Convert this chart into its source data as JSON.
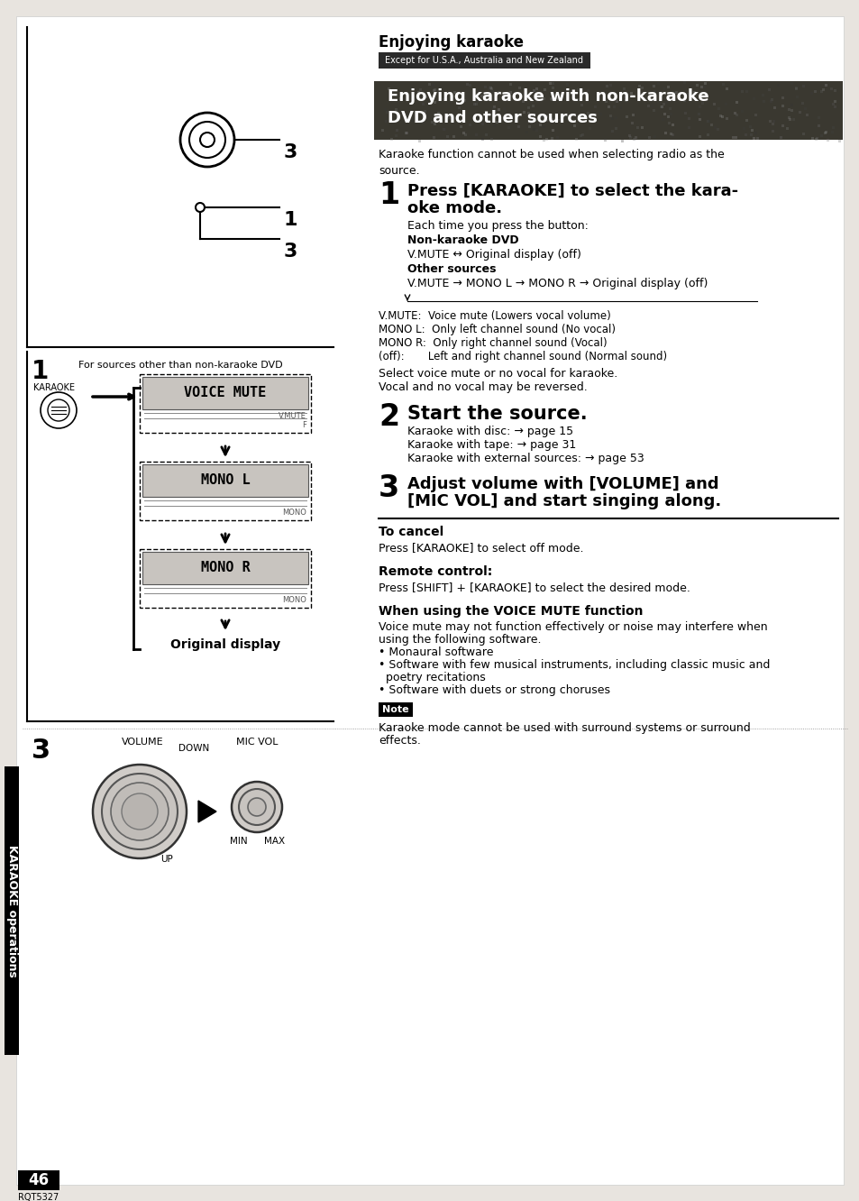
{
  "bg_color": "#e8e4df",
  "page_bg": "#ffffff",
  "title_enjoying": "Enjoying karaoke",
  "subtitle_except": "Except for U.S.A., Australia and New Zealand",
  "section_line1": "Enjoying karaoke with non-karaoke",
  "section_line2": "DVD and other sources",
  "intro_text": "Karaoke function cannot be used when selecting radio as the\nsource.",
  "step1_title_line1": "Press [KARAOKE] to select the kara-",
  "step1_title_line2": "oke mode.",
  "step1_body_lines": [
    [
      "Each time you press the button:",
      false
    ],
    [
      "Non-karaoke DVD",
      true
    ],
    [
      "V.MUTE ↔ Original display (off)",
      false
    ],
    [
      "Other sources",
      true
    ],
    [
      "V.MUTE → MONO L → MONO R → Original display (off)",
      false
    ]
  ],
  "vmute_lines": [
    "V.MUTE:  Voice mute (Lowers vocal volume)",
    "MONO L:  Only left channel sound (No vocal)",
    "MONO R:  Only right channel sound (Vocal)",
    "(off):       Left and right channel sound (Normal sound)"
  ],
  "select_lines": [
    "Select voice mute or no vocal for karaoke.",
    "Vocal and no vocal may be reversed."
  ],
  "step2_title": "Start the source.",
  "step2_lines": [
    "Karaoke with disc: → page 15",
    "Karaoke with tape: → page 31",
    "Karaoke with external sources: → page 53"
  ],
  "step3_title_line1": "Adjust volume with [VOLUME] and",
  "step3_title_line2": "[MIC VOL] and start singing along.",
  "cancel_title": "To cancel",
  "cancel_body": "Press [KARAOKE] to select off mode.",
  "remote_title": "Remote control:",
  "remote_body": "Press [SHIFT] + [KARAOKE] to select the desired mode.",
  "voice_title": "When using the VOICE MUTE function",
  "voice_lines": [
    "Voice mute may not function effectively or noise may interfere when",
    "using the following software.",
    "• Monaural software",
    "• Software with few musical instruments, including classic music and",
    "  poetry recitations",
    "• Software with duets or strong choruses"
  ],
  "note_title": "Note",
  "note_lines": [
    "Karaoke mode cannot be used with surround systems or surround",
    "effects."
  ],
  "sidebar_text": "KARAOKE operations",
  "page_num": "46",
  "page_code": "RQT5327",
  "left_header": "For sources other than non-karaoke DVD",
  "karaoke_label": "KARAOKE",
  "display1": "VOICE MUTE",
  "display2": "MONO L",
  "display3": "MONO R",
  "orig_display": "Original display",
  "volume_label": "VOLUME",
  "down_label": "DOWN",
  "up_label": "UP",
  "mic_vol_label": "MIC VOL",
  "min_label": "MIN",
  "max_label": "MAX"
}
